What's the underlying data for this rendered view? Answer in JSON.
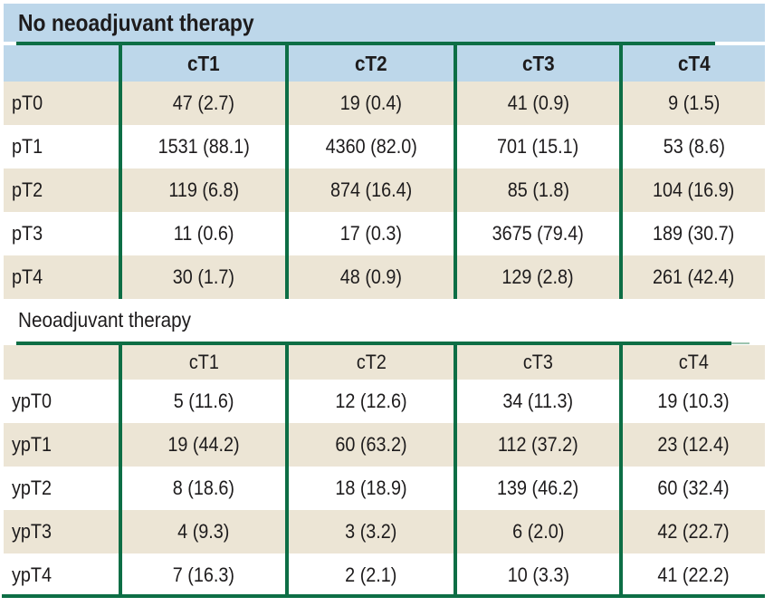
{
  "colors": {
    "rule_green": "#0d6e45",
    "header_blue": "#bdd7ea",
    "stripe_beige": "#ece5d5",
    "text": "#1d1b1c"
  },
  "table1": {
    "title": "No neoadjuvant therapy",
    "columns": [
      "cT1",
      "cT2",
      "cT3",
      "cT4"
    ],
    "rows": [
      {
        "label": "pT0",
        "values": [
          "47 (2.7)",
          "19 (0.4)",
          "41 (0.9)",
          "9 (1.5)"
        ]
      },
      {
        "label": "pT1",
        "values": [
          "1531 (88.1)",
          "4360 (82.0)",
          "701 (15.1)",
          "53 (8.6)"
        ]
      },
      {
        "label": "pT2",
        "values": [
          "119 (6.8)",
          "874 (16.4)",
          "85 (1.8)",
          "104 (16.9)"
        ]
      },
      {
        "label": "pT3",
        "values": [
          "11 (0.6)",
          "17 (0.3)",
          "3675 (79.4)",
          "189 (30.7)"
        ]
      },
      {
        "label": "pT4",
        "values": [
          "30 (1.7)",
          "48 (0.9)",
          "129 (2.8)",
          "261 (42.4)"
        ]
      }
    ]
  },
  "table2": {
    "title": "Neoadjuvant therapy",
    "columns": [
      "cT1",
      "cT2",
      "cT3",
      "cT4"
    ],
    "rows": [
      {
        "label": "ypT0",
        "values": [
          "5 (11.6)",
          "12 (12.6)",
          "34 (11.3)",
          "19 (10.3)"
        ]
      },
      {
        "label": "ypT1",
        "values": [
          "19 (44.2)",
          "60 (63.2)",
          "112 (37.2)",
          "23 (12.4)"
        ]
      },
      {
        "label": "ypT2",
        "values": [
          "8 (18.6)",
          "18 (18.9)",
          "139 (46.2)",
          "60 (32.4)"
        ]
      },
      {
        "label": "ypT3",
        "values": [
          "4 (9.3)",
          "3 (3.2)",
          "6 (2.0)",
          "42 (22.7)"
        ]
      },
      {
        "label": "ypT4",
        "values": [
          "7 (16.3)",
          "2 (2.1)",
          "10 (3.3)",
          "41 (22.2)"
        ]
      }
    ]
  }
}
